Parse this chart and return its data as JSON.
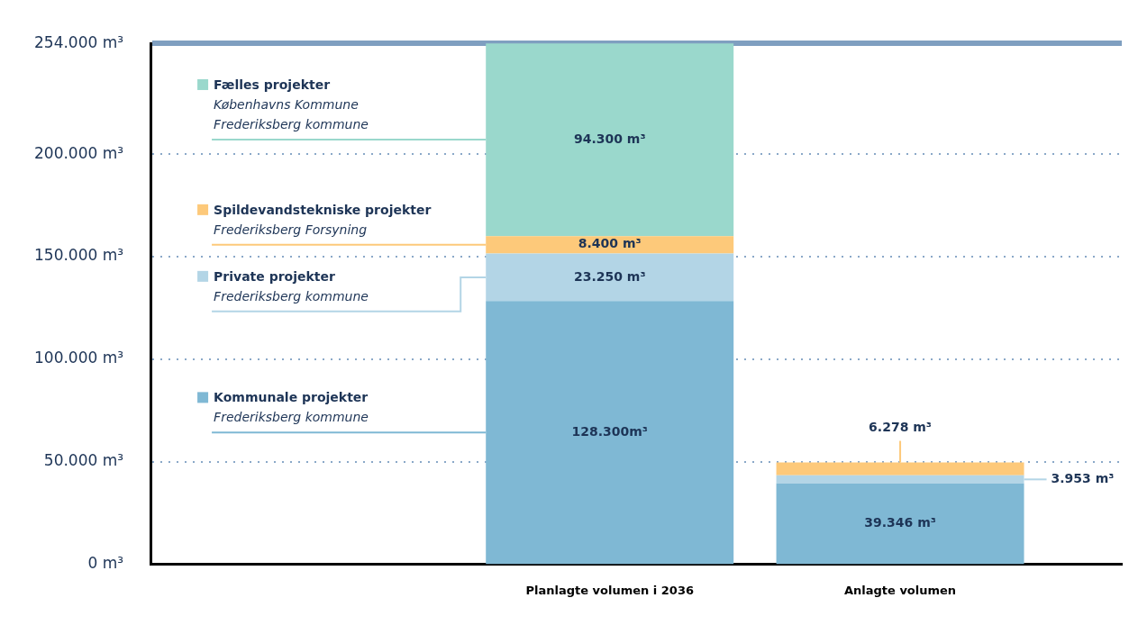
{
  "chart_data": {
    "type": "bar",
    "stacked": true,
    "categories": [
      "Planlagte volumen i 2036",
      "Anlagte volumen"
    ],
    "series": [
      {
        "name": "Kommunale projekter",
        "color": "#7fb8d4",
        "values": [
          128300,
          39346
        ],
        "value_labels": [
          "128.300m³",
          "39.346 m³"
        ]
      },
      {
        "name": "Private projekter",
        "color": "#b3d5e6",
        "values": [
          23250,
          3953
        ],
        "value_labels": [
          "23.250 m³",
          "3.953 m³"
        ]
      },
      {
        "name": "Spildevandstekniske projekter",
        "color": "#fdc97a",
        "values": [
          8400,
          6278
        ],
        "value_labels": [
          "8.400 m³",
          "6.278 m³"
        ]
      },
      {
        "name": "Fælles projekter",
        "color": "#9ad8cc",
        "values": [
          94300,
          null
        ],
        "value_labels": [
          "94.300 m³",
          null
        ]
      }
    ],
    "annotations": [
      "Frederiksberg kommune",
      "Frederiksberg kommune",
      "Frederiksberg Forsyning",
      "Københavns Kommune\nFrederiksberg kommune"
    ],
    "ylim": [
      0,
      254000
    ],
    "yticks": [
      {
        "value": 0,
        "label": "0 m³"
      },
      {
        "value": 50000,
        "label": "50.000 m³"
      },
      {
        "value": 100000,
        "label": "100.000 m³"
      },
      {
        "value": 150000,
        "label": "150.000 m³"
      },
      {
        "value": 200000,
        "label": "200.000 m³"
      },
      {
        "value": 254000,
        "label": "254.000 m³"
      }
    ],
    "grid": "y",
    "legend": "top left"
  }
}
